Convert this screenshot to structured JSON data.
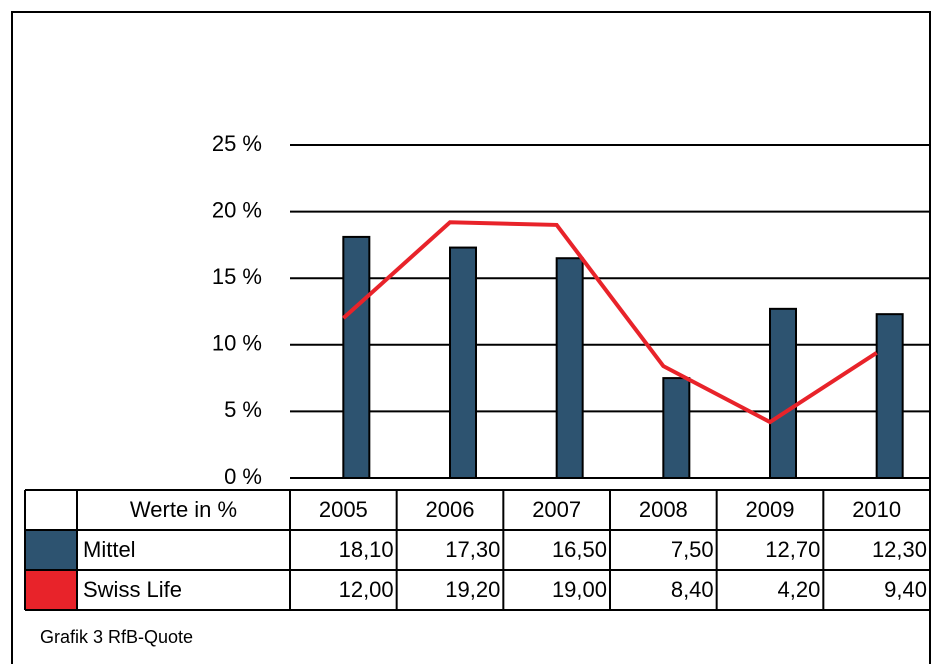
{
  "chart_data": {
    "type": "bar",
    "table_header": "Werte in %",
    "caption": "Grafik 3 RfB-Quote",
    "categories": [
      "2005",
      "2006",
      "2007",
      "2008",
      "2009",
      "2010"
    ],
    "series": [
      {
        "name": "Mittel",
        "type": "bar",
        "color": "#2d5370",
        "values": [
          18.1,
          17.3,
          16.5,
          7.5,
          12.7,
          12.3
        ],
        "value_labels": [
          "18,10",
          "17,30",
          "16,50",
          "7,50",
          "12,70",
          "12,30"
        ]
      },
      {
        "name": "Swiss Life",
        "type": "line",
        "color": "#e8232a",
        "values": [
          12.0,
          19.2,
          19.0,
          8.4,
          4.2,
          9.4
        ],
        "value_labels": [
          "12,00",
          "19,20",
          "19,00",
          "8,40",
          "4,20",
          "9,40"
        ]
      }
    ],
    "ylim": [
      0,
      25
    ],
    "yticks": [
      {
        "value": 0,
        "label": "0 %"
      },
      {
        "value": 5,
        "label": "5 %"
      },
      {
        "value": 10,
        "label": "10 %"
      },
      {
        "value": 15,
        "label": "15 %"
      },
      {
        "value": 20,
        "label": "20 %"
      },
      {
        "value": 25,
        "label": "25 %"
      }
    ],
    "grid": true
  }
}
